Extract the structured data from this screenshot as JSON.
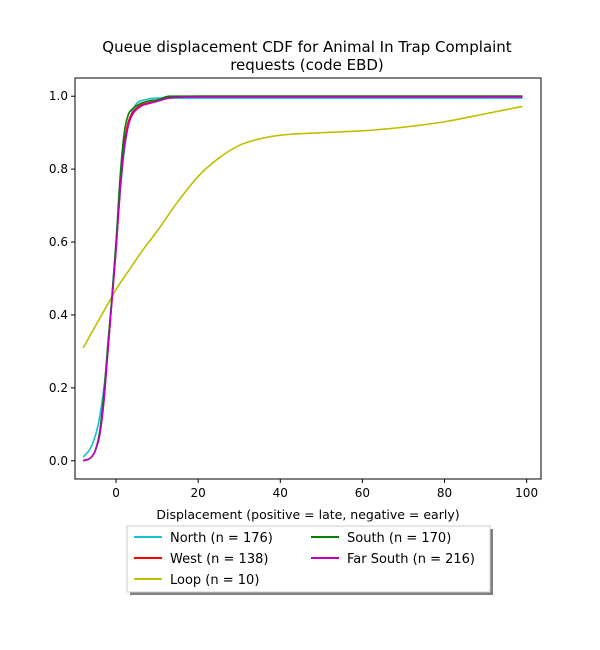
{
  "chart_data": {
    "type": "line",
    "title_line1": "Queue displacement CDF for Animal In Trap Complaint",
    "title_line2": "requests (code EBD)",
    "xlabel": "Displacement (positive = late, negative = early)",
    "ylabel": "",
    "xlim": [
      -10,
      103.5
    ],
    "ylim": [
      -0.05,
      1.05
    ],
    "xticks": [
      0,
      20,
      40,
      60,
      80,
      100
    ],
    "yticks": [
      0.0,
      0.2,
      0.4,
      0.6,
      0.8,
      1.0
    ],
    "xtick_labels": [
      "0",
      "20",
      "40",
      "60",
      "80",
      "100"
    ],
    "ytick_labels": [
      "0.0",
      "0.2",
      "0.4",
      "0.6",
      "0.8",
      "1.0"
    ],
    "grid": false,
    "legend_position": "bottom, below axes, two columns",
    "series": [
      {
        "name": "North (n = 176)",
        "color": "#17becf",
        "x": [
          -8,
          -6,
          -4,
          -2,
          -1,
          0,
          1,
          2,
          3,
          4,
          5,
          7,
          10,
          15,
          20,
          99
        ],
        "y": [
          0.01,
          0.04,
          0.12,
          0.3,
          0.45,
          0.6,
          0.74,
          0.85,
          0.92,
          0.96,
          0.98,
          0.99,
          0.995,
          0.995,
          0.995,
          0.995
        ]
      },
      {
        "name": "South (n = 170)",
        "color": "#008000",
        "x": [
          -8,
          -6,
          -5,
          -4,
          -3,
          -2,
          -1,
          0,
          1,
          2,
          3,
          4,
          6,
          8,
          10,
          13,
          20,
          99
        ],
        "y": [
          0.0,
          0.01,
          0.03,
          0.08,
          0.18,
          0.32,
          0.45,
          0.6,
          0.78,
          0.9,
          0.95,
          0.965,
          0.98,
          0.987,
          0.99,
          1.0,
          1.0,
          1.0
        ]
      },
      {
        "name": "West (n = 138)",
        "color": "#ff0000",
        "x": [
          -8,
          -6,
          -5,
          -4,
          -3,
          -2,
          -1,
          0,
          1,
          2,
          3,
          4,
          6,
          8,
          10,
          13,
          20,
          99
        ],
        "y": [
          0.0,
          0.01,
          0.03,
          0.07,
          0.16,
          0.3,
          0.44,
          0.58,
          0.75,
          0.87,
          0.93,
          0.955,
          0.975,
          0.982,
          0.988,
          0.997,
          1.0,
          1.0
        ]
      },
      {
        "name": "Far South (n = 216)",
        "color": "#bf00bf",
        "x": [
          -8,
          -6,
          -5,
          -4,
          -3,
          -2,
          -1,
          0,
          1,
          2,
          3,
          4,
          6,
          8,
          10,
          13,
          20,
          99
        ],
        "y": [
          0.0,
          0.01,
          0.03,
          0.07,
          0.16,
          0.3,
          0.44,
          0.58,
          0.74,
          0.86,
          0.92,
          0.95,
          0.972,
          0.98,
          0.986,
          0.995,
          0.998,
          0.998
        ]
      },
      {
        "name": "Loop (n = 10)",
        "color": "#bfbf00",
        "x": [
          -8,
          -5,
          -2,
          0,
          3,
          6,
          10,
          15,
          20,
          25,
          30,
          35,
          40,
          50,
          60,
          70,
          80,
          90,
          99
        ],
        "y": [
          0.31,
          0.37,
          0.43,
          0.47,
          0.52,
          0.57,
          0.63,
          0.71,
          0.78,
          0.83,
          0.865,
          0.883,
          0.893,
          0.9,
          0.905,
          0.915,
          0.93,
          0.952,
          0.972
        ]
      }
    ]
  },
  "legend": {
    "items": [
      {
        "label": "North (n = 176)",
        "color": "#17becf"
      },
      {
        "label": "South (n = 170)",
        "color": "#008000"
      },
      {
        "label": "West (n = 138)",
        "color": "#ff0000"
      },
      {
        "label": "Far South (n = 216)",
        "color": "#bf00bf"
      },
      {
        "label": "Loop (n = 10)",
        "color": "#bfbf00"
      }
    ]
  }
}
